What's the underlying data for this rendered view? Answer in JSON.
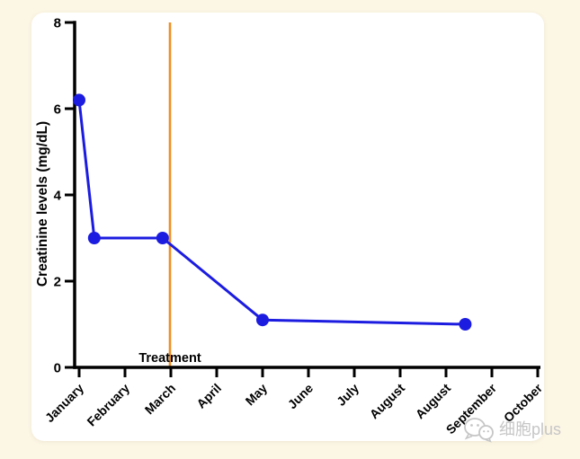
{
  "page": {
    "background_color": "#fcf6e5",
    "card_color": "#ffffff"
  },
  "chart_data": {
    "type": "line",
    "title": "",
    "xlabel": "",
    "ylabel": "Creatinine levels (mg/dL)",
    "ylim": [
      0,
      8
    ],
    "yticks": [
      0,
      2,
      4,
      6,
      8
    ],
    "categories": [
      "January",
      "February",
      "March",
      "April",
      "May",
      "June",
      "July",
      "August",
      "August",
      "September",
      "October"
    ],
    "grid": false,
    "legend": false,
    "axis_color": "#000000",
    "series": [
      {
        "name": "Creatinine",
        "color": "#1c1ce0",
        "marker": "circle",
        "points": [
          {
            "x_month_index": 0.0,
            "y": 6.2
          },
          {
            "x_month_index": 0.33,
            "y": 3.0
          },
          {
            "x_month_index": 1.82,
            "y": 3.0
          },
          {
            "x_month_index": 4.0,
            "y": 1.1
          },
          {
            "x_month_index": 8.42,
            "y": 1.0
          }
        ]
      }
    ],
    "annotations": [
      {
        "type": "vline",
        "label": "Treatment",
        "x_month_index": 1.98,
        "color": "#ef8e22"
      }
    ]
  },
  "watermark": {
    "icon": "wechat-bubbles-icon",
    "text": "细胞plus",
    "color": "#c6c6c6"
  }
}
